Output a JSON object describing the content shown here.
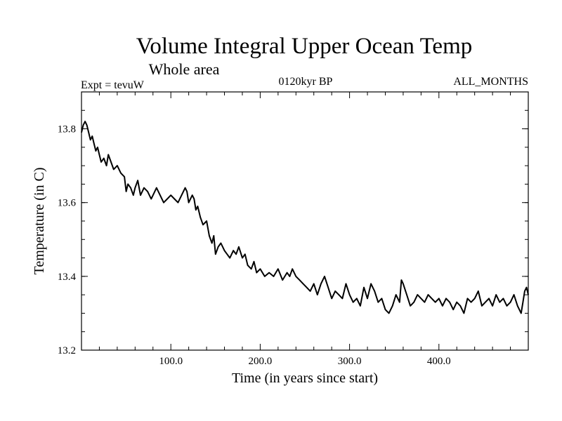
{
  "chart_data": {
    "type": "line",
    "title": "Volume Integral Upper Ocean Temp",
    "subtitle": "Whole area",
    "experiment": "Expt = tevuW",
    "period": "0120kyr BP",
    "months": "ALL_MONTHS",
    "xlabel": "Time (in years since start)",
    "ylabel": "Temperature (in C)",
    "xlim": [
      0,
      500
    ],
    "ylim": [
      13.2,
      13.9
    ],
    "x_ticks": [
      100,
      200,
      300,
      400
    ],
    "x_tick_labels": [
      "100.0",
      "200.0",
      "300.0",
      "400.0"
    ],
    "y_ticks": [
      13.2,
      13.4,
      13.6,
      13.8
    ],
    "y_tick_labels": [
      "13.2",
      "13.4",
      "13.6",
      "13.8"
    ],
    "grid": false,
    "series": [
      {
        "color": "#000000",
        "x": [
          0,
          2,
          4,
          6,
          8,
          10,
          12,
          14,
          16,
          18,
          20,
          22,
          25,
          28,
          30,
          33,
          36,
          40,
          44,
          48,
          50,
          52,
          55,
          58,
          60,
          63,
          66,
          70,
          74,
          78,
          80,
          84,
          88,
          92,
          96,
          100,
          104,
          108,
          112,
          116,
          118,
          120,
          124,
          126,
          128,
          130,
          133,
          136,
          140,
          143,
          146,
          148,
          150,
          153,
          156,
          160,
          163,
          166,
          170,
          173,
          176,
          180,
          183,
          186,
          190,
          193,
          196,
          200,
          205,
          210,
          215,
          220,
          225,
          230,
          233,
          236,
          240,
          244,
          248,
          252,
          256,
          260,
          264,
          268,
          272,
          276,
          280,
          284,
          288,
          292,
          296,
          300,
          304,
          308,
          312,
          316,
          320,
          324,
          328,
          332,
          336,
          340,
          344,
          348,
          352,
          356,
          358,
          360,
          364,
          368,
          372,
          376,
          380,
          384,
          388,
          392,
          396,
          400,
          404,
          408,
          412,
          416,
          420,
          424,
          428,
          432,
          436,
          440,
          444,
          448,
          452,
          456,
          460,
          464,
          468,
          472,
          476,
          480,
          484,
          488,
          492,
          494,
          496,
          498,
          500
        ],
        "y": [
          13.79,
          13.81,
          13.82,
          13.81,
          13.79,
          13.77,
          13.78,
          13.76,
          13.74,
          13.75,
          13.73,
          13.71,
          13.72,
          13.7,
          13.73,
          13.71,
          13.69,
          13.7,
          13.68,
          13.67,
          13.63,
          13.65,
          13.64,
          13.62,
          13.64,
          13.66,
          13.62,
          13.64,
          13.63,
          13.61,
          13.62,
          13.64,
          13.62,
          13.6,
          13.61,
          13.62,
          13.61,
          13.6,
          13.62,
          13.64,
          13.63,
          13.6,
          13.62,
          13.61,
          13.58,
          13.59,
          13.56,
          13.54,
          13.55,
          13.51,
          13.49,
          13.51,
          13.46,
          13.48,
          13.49,
          13.47,
          13.46,
          13.45,
          13.47,
          13.46,
          13.48,
          13.45,
          13.46,
          13.43,
          13.42,
          13.44,
          13.41,
          13.42,
          13.4,
          13.41,
          13.4,
          13.42,
          13.39,
          13.41,
          13.4,
          13.42,
          13.4,
          13.39,
          13.38,
          13.37,
          13.36,
          13.38,
          13.35,
          13.38,
          13.4,
          13.37,
          13.34,
          13.36,
          13.35,
          13.34,
          13.38,
          13.35,
          13.33,
          13.34,
          13.32,
          13.37,
          13.34,
          13.38,
          13.36,
          13.33,
          13.34,
          13.31,
          13.3,
          13.32,
          13.35,
          13.33,
          13.39,
          13.38,
          13.35,
          13.32,
          13.33,
          13.35,
          13.34,
          13.33,
          13.35,
          13.34,
          13.33,
          13.34,
          13.32,
          13.34,
          13.33,
          13.31,
          13.33,
          13.32,
          13.3,
          13.34,
          13.33,
          13.34,
          13.36,
          13.32,
          13.33,
          13.34,
          13.32,
          13.35,
          13.33,
          13.34,
          13.32,
          13.33,
          13.35,
          13.32,
          13.3,
          13.33,
          13.36,
          13.37,
          13.35
        ]
      }
    ]
  }
}
